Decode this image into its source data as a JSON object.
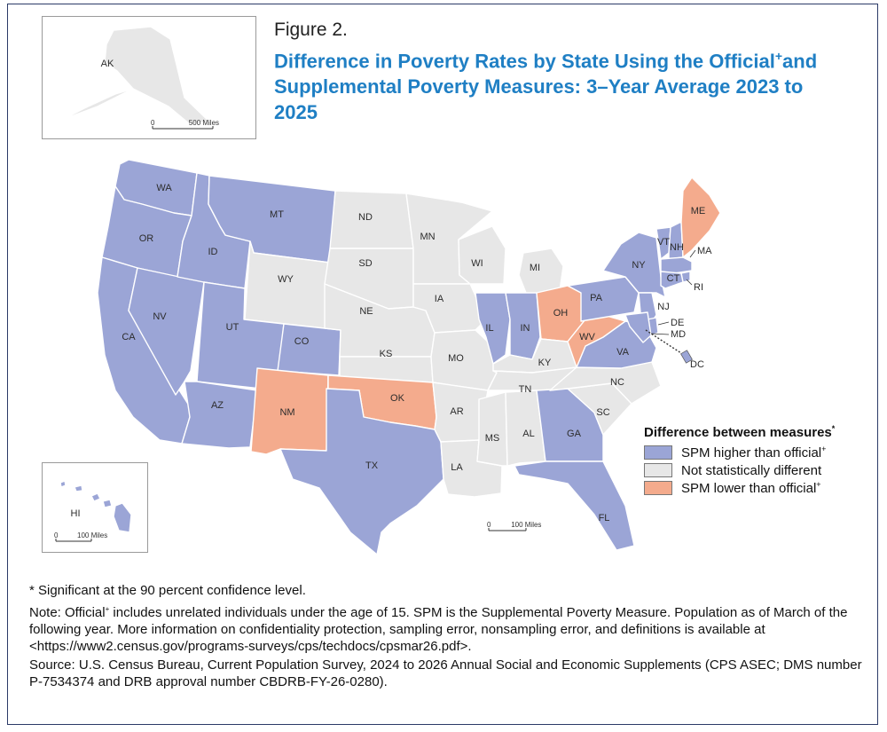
{
  "figure": {
    "label": "Figure 2.",
    "title_part1": "Difference in Poverty Rates by State Using the Official",
    "title_sup": "+",
    "title_part2": "and Supplemental Poverty Measures: 3–Year Average 2023 to 2025"
  },
  "colors": {
    "higher": "#9ba5d6",
    "same": "#e7e7e7",
    "lower": "#f4ab8d",
    "border": "#ffffff",
    "title": "#1f7fc4"
  },
  "legend": {
    "title": "Difference between measures",
    "title_mark": "*",
    "items": [
      {
        "label": "SPM higher than official",
        "mark": "+",
        "color": "#9ba5d6"
      },
      {
        "label": "Not statistically different",
        "mark": "",
        "color": "#e7e7e7"
      },
      {
        "label": "SPM lower than official",
        "mark": "+",
        "color": "#f4ab8d"
      }
    ]
  },
  "scale_bars": {
    "alaska": {
      "zero": "0",
      "label": "500 Miles"
    },
    "hawaii": {
      "zero": "0",
      "label": "100 Miles"
    },
    "conus": {
      "zero": "0",
      "label": "100 Miles"
    }
  },
  "states": {
    "WA": "higher",
    "OR": "higher",
    "CA": "higher",
    "NV": "higher",
    "ID": "higher",
    "MT": "higher",
    "WY": "same",
    "UT": "higher",
    "AZ": "higher",
    "CO": "higher",
    "NM": "lower",
    "ND": "same",
    "SD": "same",
    "NE": "same",
    "KS": "same",
    "OK": "lower",
    "TX": "higher",
    "MN": "same",
    "IA": "same",
    "MO": "same",
    "AR": "same",
    "LA": "same",
    "WI": "same",
    "IL": "higher",
    "MI": "same",
    "IN": "higher",
    "OH": "lower",
    "KY": "same",
    "TN": "same",
    "MS": "same",
    "AL": "same",
    "GA": "higher",
    "FL": "higher",
    "SC": "same",
    "NC": "same",
    "VA": "higher",
    "WV": "lower",
    "PA": "higher",
    "NY": "higher",
    "VT": "higher",
    "NH": "higher",
    "ME": "lower",
    "MA": "higher",
    "RI": "higher",
    "CT": "higher",
    "NJ": "higher",
    "DE": "higher",
    "MD": "higher",
    "DC": "higher",
    "AK": "same",
    "HI": "higher"
  },
  "notes": {
    "significance": "* Significant at the 90 percent confidence level.",
    "note_prefix": "Note: Official",
    "note_sup": "+",
    "note_body": " includes unrelated individuals under the age of 15. SPM is the Supplemental Poverty Measure. Population as of March of the following year. More information on confidentiality protection, sampling error, nonsampling error, and definitions is available at <https://www2.census.gov/programs-surveys/cps/techdocs/cpsmar26.pdf>.",
    "source": "Source: U.S. Census Bureau, Current Population Survey, 2024 to 2026 Annual Social and Economic Supplements (CPS ASEC; DMS number P-7534374 and DRB approval number CBDRB-FY-26-0280)."
  }
}
